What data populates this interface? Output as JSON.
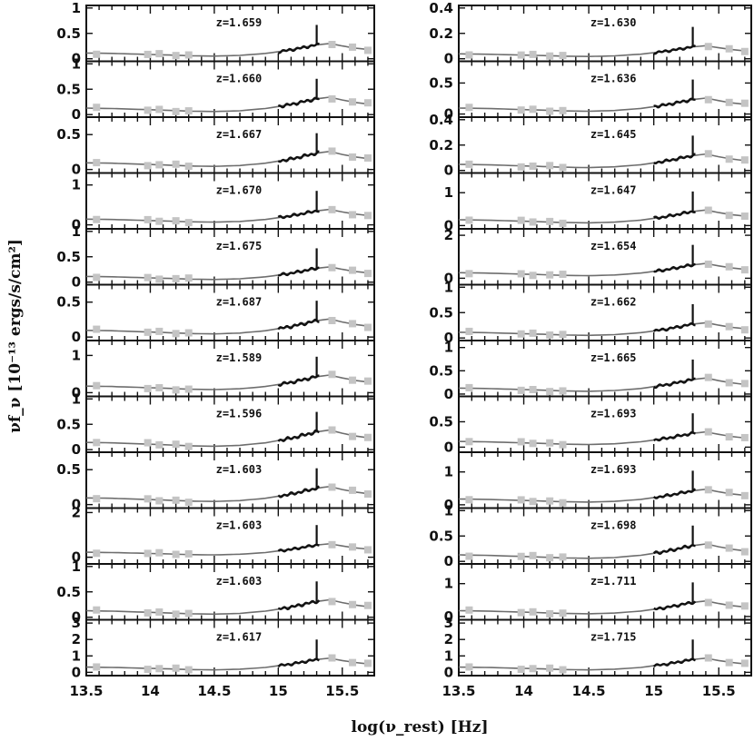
{
  "figure": {
    "xlabel": "log(ν_rest) [Hz]",
    "ylabel": "νf_ν [10⁻¹³ ergs/s/cm²]"
  },
  "colors": {
    "model": "#6e6e6e",
    "photometry": "#c4c4c4",
    "spectrum": "#111111",
    "axes": "#111111"
  },
  "chart_data": [
    {
      "column": "left",
      "type": "line",
      "xlabel": "log(ν_rest) [Hz]",
      "ylabel": "νf_ν [10⁻¹³ ergs/s/cm²]",
      "xlim": [
        13.5,
        15.75
      ],
      "xticks": [
        "13.5",
        "14",
        "14.5",
        "15",
        "15.5"
      ],
      "panels": [
        {
          "z": "z=1.659",
          "ylim": [
            -0.05,
            1.05
          ],
          "yticks": [
            "1",
            "0.5",
            "0"
          ],
          "ytick_values": [
            1,
            0.5,
            0
          ],
          "scale": 0.35
        },
        {
          "z": "z=1.660",
          "ylim": [
            -0.05,
            1.05
          ],
          "yticks": [
            "1",
            "0.5",
            "0"
          ],
          "ytick_values": [
            1,
            0.5,
            0
          ],
          "scale": 0.4
        },
        {
          "z": "z=1.667",
          "ylim": [
            -0.05,
            0.75
          ],
          "yticks": [
            "0.5",
            "0"
          ],
          "ytick_values": [
            0.5,
            0
          ],
          "scale": 0.3
        },
        {
          "z": "z=1.670",
          "ylim": [
            -0.1,
            1.3
          ],
          "yticks": [
            "1",
            "0"
          ],
          "ytick_values": [
            1,
            0
          ],
          "scale": 0.45
        },
        {
          "z": "z=1.675",
          "ylim": [
            -0.05,
            1.05
          ],
          "yticks": [
            "1",
            "0.5",
            "0"
          ],
          "ytick_values": [
            1,
            0.5,
            0
          ],
          "scale": 0.35
        },
        {
          "z": "z=1.687",
          "ylim": [
            -0.05,
            0.75
          ],
          "yticks": [
            "0.5",
            "0"
          ],
          "ytick_values": [
            0.5,
            0
          ],
          "scale": 0.3
        },
        {
          "z": "z=1.589",
          "ylim": [
            -0.1,
            1.4
          ],
          "yticks": [
            "1",
            "0"
          ],
          "ytick_values": [
            1,
            0
          ],
          "scale": 0.55
        },
        {
          "z": "z=1.596",
          "ylim": [
            -0.05,
            1.05
          ],
          "yticks": [
            "1",
            "0.5",
            "0"
          ],
          "ytick_values": [
            1,
            0.5,
            0
          ],
          "scale": 0.45
        },
        {
          "z": "z=1.603",
          "ylim": [
            -0.05,
            0.75
          ],
          "yticks": [
            "0.5",
            "0"
          ],
          "ytick_values": [
            0.5,
            0
          ],
          "scale": 0.3
        },
        {
          "z": "z=1.603",
          "ylim": [
            -0.3,
            2.2
          ],
          "yticks": [
            "2",
            "0"
          ],
          "ytick_values": [
            2,
            0
          ],
          "scale": 0.7
        },
        {
          "z": "z=1.603",
          "ylim": [
            -0.05,
            1.05
          ],
          "yticks": [
            "1",
            "0.5",
            "0"
          ],
          "ytick_values": [
            1,
            0.5,
            0
          ],
          "scale": 0.4
        },
        {
          "z": "z=1.617",
          "ylim": [
            -0.2,
            3.2
          ],
          "yticks": [
            "3",
            "2",
            "1",
            "0"
          ],
          "ytick_values": [
            3,
            2,
            1,
            0
          ],
          "scale": 1.0
        }
      ]
    },
    {
      "column": "right",
      "type": "line",
      "xlabel": "log(ν_rest) [Hz]",
      "ylabel": "νf_ν [10⁻¹³ ergs/s/cm²]",
      "xlim": [
        13.5,
        15.75
      ],
      "xticks": [
        "13.5",
        "14",
        "14.5",
        "15",
        "15.5"
      ],
      "panels": [
        {
          "z": "z=1.630",
          "ylim": [
            -0.02,
            0.42
          ],
          "yticks": [
            "0.4",
            "0.2",
            "0"
          ],
          "ytick_values": [
            0.4,
            0.2,
            0
          ],
          "scale": 0.12
        },
        {
          "z": "z=1.636",
          "ylim": [
            -0.05,
            0.85
          ],
          "yticks": [
            "0.5",
            "0"
          ],
          "ytick_values": [
            0.5,
            0
          ],
          "scale": 0.3
        },
        {
          "z": "z=1.645",
          "ylim": [
            -0.02,
            0.42
          ],
          "yticks": [
            "0.4",
            "0.2",
            "0"
          ],
          "ytick_values": [
            0.4,
            0.2,
            0
          ],
          "scale": 0.15
        },
        {
          "z": "z=1.647",
          "ylim": [
            -0.1,
            1.6
          ],
          "yticks": [
            "1",
            "0"
          ],
          "ytick_values": [
            1,
            0
          ],
          "scale": 0.55
        },
        {
          "z": "z=1.654",
          "ylim": [
            -0.3,
            2.3
          ],
          "yticks": [
            "2",
            "0"
          ],
          "ytick_values": [
            2,
            0
          ],
          "scale": 0.8
        },
        {
          "z": "z=1.662",
          "ylim": [
            -0.05,
            1.05
          ],
          "yticks": [
            "1",
            "0.5",
            "0"
          ],
          "ytick_values": [
            1,
            0.5,
            0
          ],
          "scale": 0.35
        },
        {
          "z": "z=1.665",
          "ylim": [
            -0.05,
            1.15
          ],
          "yticks": [
            "1",
            "0.5",
            "0"
          ],
          "ytick_values": [
            1,
            0.5,
            0
          ],
          "scale": 0.4
        },
        {
          "z": "z=1.693",
          "ylim": [
            -0.1,
            1.0
          ],
          "yticks": [
            "0.5",
            "0"
          ],
          "ytick_values": [
            0.5,
            0
          ],
          "scale": 0.35
        },
        {
          "z": "z=1.693",
          "ylim": [
            -0.1,
            1.6
          ],
          "yticks": [
            "1",
            "0"
          ],
          "ytick_values": [
            1,
            0
          ],
          "scale": 0.55
        },
        {
          "z": "z=1.698",
          "ylim": [
            -0.05,
            1.05
          ],
          "yticks": [
            "1",
            "0.5",
            "0"
          ],
          "ytick_values": [
            1,
            0.5,
            0
          ],
          "scale": 0.4
        },
        {
          "z": "z=1.711",
          "ylim": [
            -0.1,
            1.6
          ],
          "yticks": [
            "1",
            "0"
          ],
          "ytick_values": [
            1,
            0
          ],
          "scale": 0.55
        },
        {
          "z": "z=1.715",
          "ylim": [
            -0.2,
            3.2
          ],
          "yticks": [
            "3",
            "2",
            "1",
            "0"
          ],
          "ytick_values": [
            3,
            2,
            1,
            0
          ],
          "scale": 1.0
        }
      ]
    }
  ]
}
